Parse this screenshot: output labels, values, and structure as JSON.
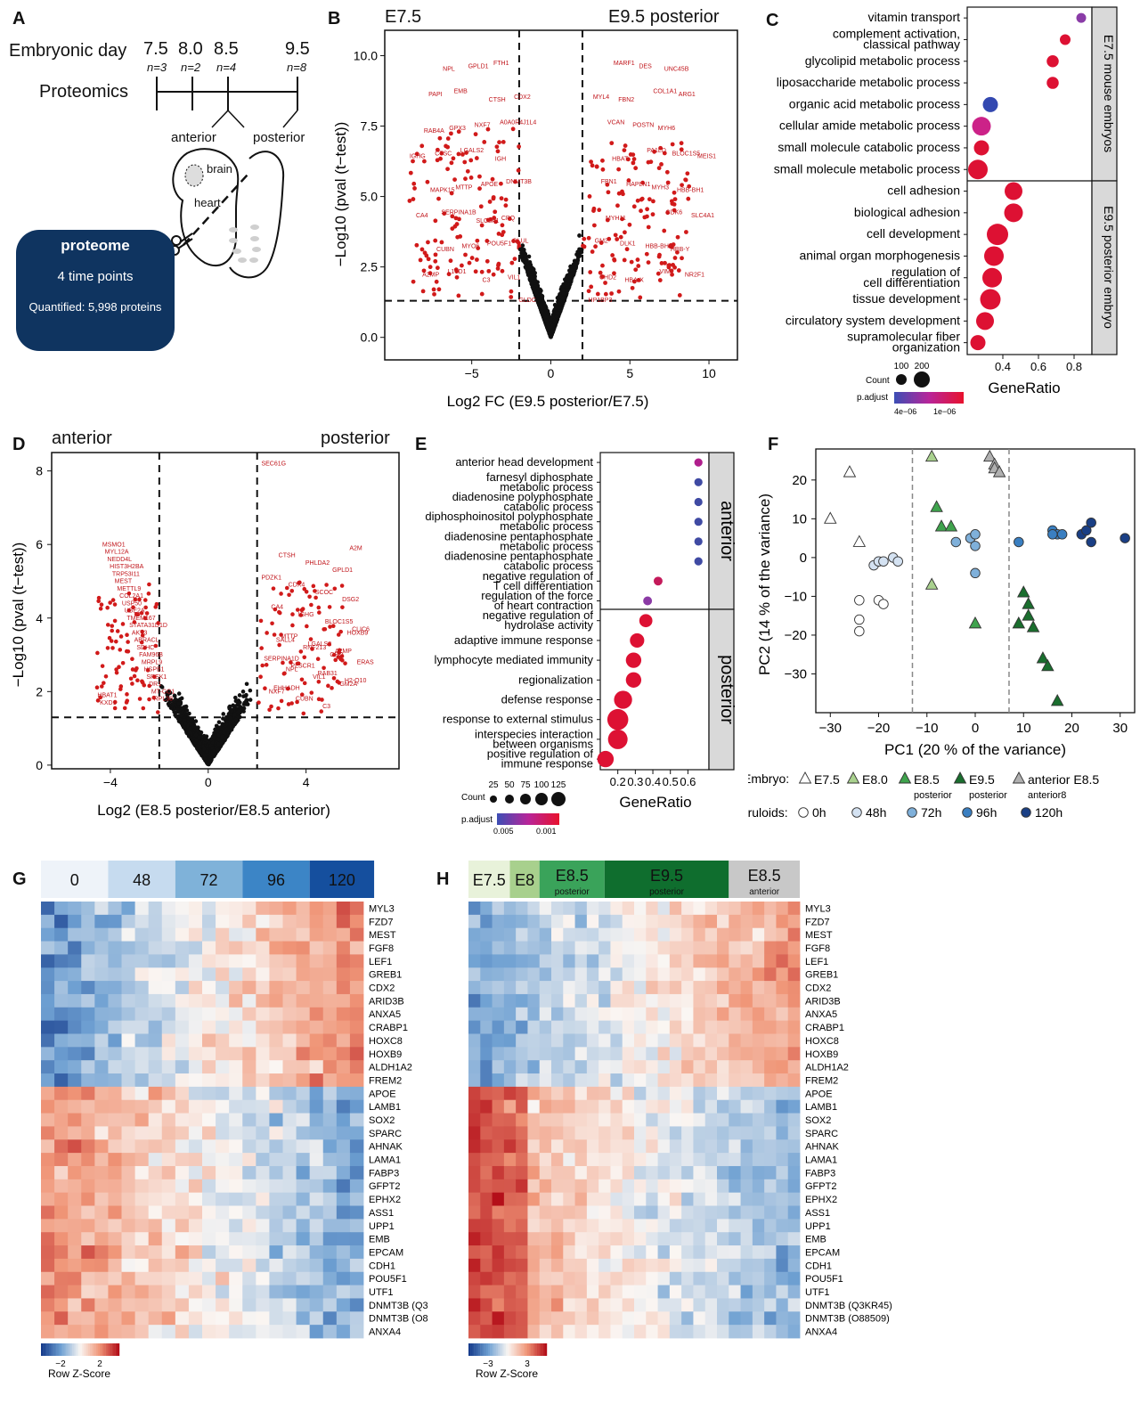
{
  "panels": {
    "A": "A",
    "B": "B",
    "C": "C",
    "D": "D",
    "E": "E",
    "F": "F",
    "G": "G",
    "H": "H"
  },
  "panelA": {
    "emb_label": "Embryonic day",
    "days": [
      {
        "d": "7.5",
        "n": "n=3"
      },
      {
        "d": "8.0",
        "n": "n=2"
      },
      {
        "d": "8.5",
        "n": "n=4"
      },
      {
        "d": "9.5",
        "n": "n=8"
      }
    ],
    "proteomics": "Proteomics",
    "anterior": "anterior",
    "posterior": "posterior",
    "brain": "brain",
    "heart": "heart",
    "box_title": "proteome",
    "box_line2": "4 time points",
    "box_line3": "Quantified: 5,998 proteins"
  },
  "panelB": {
    "left_title": "E7.5",
    "right_title": "E9.5 posterior",
    "xlabel": "Log2 FC (E9.5 posterior/E7.5)",
    "ylabel": "−Log10 (pval (t−test))",
    "xticks": [
      "−5",
      "0",
      "5",
      "10"
    ],
    "yticks": [
      "0.0",
      "2.5",
      "5.0",
      "7.5",
      "10.0"
    ],
    "genes": [
      "GLDC",
      "LGALS2",
      "GLUL",
      "EMB",
      "DNMT3B",
      "L1TD1",
      "A0A0R4J1L4",
      "SERPINA1B",
      "FTH1",
      "CTSC",
      "POU5F1",
      "PAPI",
      "APOE",
      "A2MP",
      "NXF7",
      "CA4",
      "GPLD1",
      "IGHG",
      "MYO6",
      "CDX2",
      "MTTP",
      "VIL1",
      "GPX3",
      "CPQ",
      "NPL",
      "IGH",
      "CUBN",
      "CTSH",
      "MAPK15",
      "C3",
      "RAB4A",
      "SLC8A1",
      "HP1BP3",
      "PA1LD",
      "GM2",
      "COL1A1",
      "FBN1",
      "VIM",
      "VCAN",
      "CDK6",
      "MARF1",
      "BLOC1S5",
      "DLK1",
      "ARG1",
      "HAPLN1",
      "NR2F1",
      "POSTN",
      "SLC4A1",
      "DES",
      "MEIS1",
      "HBB-BH0",
      "MYL4",
      "MYH3",
      "CHD2",
      "MYH6",
      "MYH11",
      "UNC45B",
      "HBAT",
      "HBB-Y",
      "FBN2",
      "HBB-BH1",
      "HBA-X"
    ]
  },
  "panelC": {
    "terms": [
      "vitamin transport",
      "complement activation, classical pathway",
      "glycolipid metabolic process",
      "liposaccharide metabolic process",
      "organic acid metabolic process",
      "cellular amide metabolic process",
      "small molecule catabolic process",
      "small molecule metabolic process",
      "cell adhesion",
      "biological adhesion",
      "cell development",
      "animal organ morphogenesis",
      "regulation of cell differentiation",
      "tissue development",
      "circulatory system development",
      "supramolecular fiber organization"
    ],
    "values": [
      0.84,
      0.75,
      0.68,
      0.68,
      0.33,
      0.28,
      0.28,
      0.26,
      0.46,
      0.46,
      0.37,
      0.35,
      0.34,
      0.33,
      0.3,
      0.26
    ],
    "counts": [
      30,
      40,
      55,
      55,
      90,
      130,
      90,
      140,
      120,
      130,
      160,
      140,
      140,
      150,
      120,
      90
    ],
    "colors": [
      "#8a3ca7",
      "#dd1133",
      "#dd1133",
      "#dd1133",
      "#3348b0",
      "#cc2288",
      "#dd1133",
      "#dd1133",
      "#dd1133",
      "#dd1133",
      "#dd1133",
      "#dd1133",
      "#dd1133",
      "#dd1133",
      "#dd1133",
      "#dd1133"
    ],
    "strip_top": "E7.5 mouse embryos",
    "strip_bottom": "E9.5 posterior embryo",
    "xticks": [
      "0.4",
      "0.6",
      "0.8"
    ],
    "xlabel": "GeneRatio",
    "count_label": "Count",
    "count_vals": [
      "100",
      "200"
    ],
    "padj_label": "p.adjust",
    "padj_lo": "4e−06",
    "padj_hi": "1e−06"
  },
  "panelD": {
    "left_title": "anterior",
    "right_title": "posterior",
    "xlabel": "Log2 (E8.5 posterior/E8.5 anterior)",
    "ylabel": "−Log10 (pval (t−test))",
    "xticks": [
      "−4",
      "0",
      "4"
    ],
    "yticks": [
      "0",
      "2",
      "4",
      "6",
      "8"
    ],
    "genes": [
      "SEC61G",
      "RPL38",
      "MT-CO1",
      "DR1",
      "SREK1",
      "HSPB1",
      "MRPL9",
      "FAM96B",
      "SDHC",
      "ABRACL",
      "AKT3",
      "STATA31D1D",
      "TMEM167",
      "UBE2A",
      "USP50",
      "COL2A1",
      "METTL9",
      "MEST",
      "TRP53I11",
      "HIST3H2BA",
      "NEDD4L",
      "MYL12A",
      "MSMO1",
      "KXD1",
      "HBAT1",
      "EHHADH",
      "H2-Q10",
      "RAB31",
      "PLSCR1",
      "SERPINA1D",
      "A2MP",
      "LGALS2",
      "MTTP",
      "CLIC6",
      "BLOC1S5",
      "IGHG",
      "CA4",
      "DSG2",
      "SCOC",
      "CDX4",
      "PDZK1",
      "GPLD1",
      "PHLDA2",
      "CTSH",
      "A2M",
      "C3",
      "CUBN",
      "NXF7",
      "GM2A",
      "VIL1",
      "NPL",
      "ERAS",
      "CPQ",
      "RNF213",
      "SALL4",
      "HOXB9"
    ]
  },
  "panelE": {
    "terms": [
      "anterior head development",
      "farnesyl diphosphate metabolic process",
      "diadenosine polyphosphate catabolic process",
      "diphosphoinositol polyphosphate metabolic process",
      "diadenosine pentaphosphate metabolic process",
      "diadenosine pentaphosphate catabolic process",
      "negative regulation of T cell differentiation",
      "regulation of the force of heart contraction",
      "negative regulation of hydrolase activity",
      "adaptive immune response",
      "lymphocyte mediated immunity",
      "regionalization",
      "defense response",
      "response to external stimulus",
      "interspecies interaction between organisms",
      "positive regulation of immune response"
    ],
    "values": [
      0.66,
      0.66,
      0.66,
      0.66,
      0.66,
      0.66,
      0.43,
      0.37,
      0.36,
      0.31,
      0.29,
      0.29,
      0.23,
      0.2,
      0.2,
      0.13
    ],
    "counts": [
      4,
      4,
      4,
      4,
      4,
      4,
      6,
      6,
      30,
      40,
      50,
      50,
      80,
      120,
      100,
      60
    ],
    "colors": [
      "#b01e8c",
      "#3f4aa3",
      "#3f4aa3",
      "#3f4aa3",
      "#3f4aa3",
      "#3f4aa3",
      "#c41a5a",
      "#8b3aa5",
      "#dd1133",
      "#dd1133",
      "#dd1133",
      "#dd1133",
      "#dd1133",
      "#dd1133",
      "#dd1133",
      "#dd1133"
    ],
    "strip_top": "anterior",
    "strip_bottom": "posterior",
    "xticks": [
      "0.2",
      "0.3",
      "0.4",
      "0.5",
      "0.6"
    ],
    "xlabel": "GeneRatio",
    "count_label": "Count",
    "count_vals": [
      "25",
      "50",
      "75",
      "100",
      "125"
    ],
    "padj_label": "p.adjust",
    "padj_lo": "0.005",
    "padj_hi": "0.001"
  },
  "chart_data": [
    {
      "type": "scatter",
      "panel": "F",
      "title": "",
      "xlabel": "PC1 (20 % of the variance)",
      "ylabel": "PC2 (14  % of the variance)",
      "xlim": [
        -33,
        33
      ],
      "ylim": [
        -40,
        28
      ],
      "xticks": [
        "−30",
        "−20",
        "−10",
        "0",
        "10",
        "20",
        "30"
      ],
      "yticks": [
        "20",
        "10",
        "0",
        "−10",
        "−20",
        "−30"
      ],
      "series": [
        {
          "name": "E7.5",
          "shape": "triangle",
          "color": "#ffffff",
          "points": [
            [
              -26,
              22
            ],
            [
              -30,
              10
            ],
            [
              -24,
              4
            ]
          ]
        },
        {
          "name": "E8.0",
          "shape": "triangle",
          "color": "#a9d18e",
          "points": [
            [
              -9,
              26
            ],
            [
              -9,
              -7
            ]
          ]
        },
        {
          "name": "E8.5 posterior",
          "shape": "triangle",
          "color": "#3fa34d",
          "points": [
            [
              -8,
              13
            ],
            [
              -7,
              8
            ],
            [
              -5,
              8
            ],
            [
              0,
              -17
            ]
          ]
        },
        {
          "name": "E9.5 posterior",
          "shape": "triangle",
          "color": "#1a6e2e",
          "points": [
            [
              10,
              -9
            ],
            [
              11,
              -12
            ],
            [
              9,
              -17
            ],
            [
              11,
              -15
            ],
            [
              12,
              -18
            ],
            [
              14,
              -26
            ],
            [
              15,
              -28
            ],
            [
              17,
              -37
            ]
          ]
        },
        {
          "name": "anterior E8.5",
          "shape": "triangle",
          "color": "#b0b0b0",
          "points": [
            [
              3,
              26
            ],
            [
              4,
              24
            ],
            [
              4,
              23
            ],
            [
              5,
              22
            ]
          ]
        },
        {
          "name": "0h",
          "shape": "circle",
          "color": "#ffffff",
          "points": [
            [
              -24,
              -11
            ],
            [
              -20,
              -11
            ],
            [
              -19,
              -12
            ],
            [
              -24,
              -16
            ],
            [
              -24,
              -19
            ]
          ]
        },
        {
          "name": "48h",
          "shape": "circle",
          "color": "#d4e2f2",
          "points": [
            [
              -21,
              -2
            ],
            [
              -20,
              -1
            ],
            [
              -19,
              -1
            ],
            [
              -17,
              0
            ],
            [
              -16,
              -1
            ]
          ]
        },
        {
          "name": "72h",
          "shape": "circle",
          "color": "#7fb0da",
          "points": [
            [
              -1,
              5
            ],
            [
              0,
              6
            ],
            [
              -4,
              4
            ],
            [
              0,
              3
            ],
            [
              0,
              -4
            ]
          ]
        },
        {
          "name": "96h",
          "shape": "circle",
          "color": "#3a7fc1",
          "points": [
            [
              9,
              4
            ],
            [
              16,
              7
            ],
            [
              17,
              6
            ],
            [
              18,
              6
            ],
            [
              16,
              6
            ]
          ]
        },
        {
          "name": "120h",
          "shape": "circle",
          "color": "#1a3f85",
          "points": [
            [
              22,
              6
            ],
            [
              23,
              7
            ],
            [
              24,
              9
            ],
            [
              24,
              4
            ],
            [
              31,
              5
            ]
          ]
        }
      ],
      "legend_embryo": "Embryo:",
      "legend_gastruloids": "Gastruloids:",
      "legend_embryo_items": [
        "E7.5",
        "E8.0",
        "E8.5",
        "E9.5",
        "anterior E8.5"
      ],
      "legend_embryo_sub": [
        "",
        "",
        "posterior",
        "posterior",
        "anterior8"
      ],
      "legend_gastro_items": [
        "0h",
        "48h",
        "72h",
        "96h",
        "120h"
      ]
    },
    {
      "type": "heatmap",
      "panel": "G",
      "columns_groups": [
        "0",
        "48",
        "72",
        "96",
        "120"
      ],
      "rows": [
        "MYL3",
        "FZD7",
        "MEST",
        "FGF8",
        "LEF1",
        "GREB1",
        "CDX2",
        "ARID3B",
        "ANXA5",
        "CRABP1",
        "HOXC8",
        "HOXB9",
        "ALDH1A2",
        "FREM2",
        "APOE",
        "LAMB1",
        "SOX2",
        "SPARC",
        "AHNAK",
        "LAMA1",
        "FABP3",
        "GFPT2",
        "EPHX2",
        "ASS1",
        "UPP1",
        "EMB",
        "EPCAM",
        "CDH1",
        "POU5F1",
        "UTF1",
        "DNMT3B (Q3KR45)",
        "DNMT3B (O88509)",
        "ANXA4"
      ],
      "scale_min": "−2",
      "scale_max": "2",
      "scale_label": "Row Z-Score"
    },
    {
      "type": "heatmap",
      "panel": "H",
      "columns_groups": [
        "E7.5",
        "E8",
        "E8.5",
        "E9.5",
        "E8.5"
      ],
      "columns_sub": [
        "",
        "",
        "posterior",
        "posterior",
        "anterior"
      ],
      "rows": [
        "MYL3",
        "FZD7",
        "MEST",
        "FGF8",
        "LEF1",
        "GREB1",
        "CDX2",
        "ARID3B",
        "ANXA5",
        "CRABP1",
        "HOXC8",
        "HOXB9",
        "ALDH1A2",
        "FREM2",
        "APOE",
        "LAMB1",
        "SOX2",
        "SPARC",
        "AHNAK",
        "LAMA1",
        "FABP3",
        "GFPT2",
        "EPHX2",
        "ASS1",
        "UPP1",
        "EMB",
        "EPCAM",
        "CDH1",
        "POU5F1",
        "UTF1",
        "DNMT3B (Q3KR45)",
        "DNMT3B (O88509)",
        "ANXA4"
      ],
      "scale_min": "−3",
      "scale_max": "3",
      "scale_label": "Row Z-Score"
    }
  ]
}
